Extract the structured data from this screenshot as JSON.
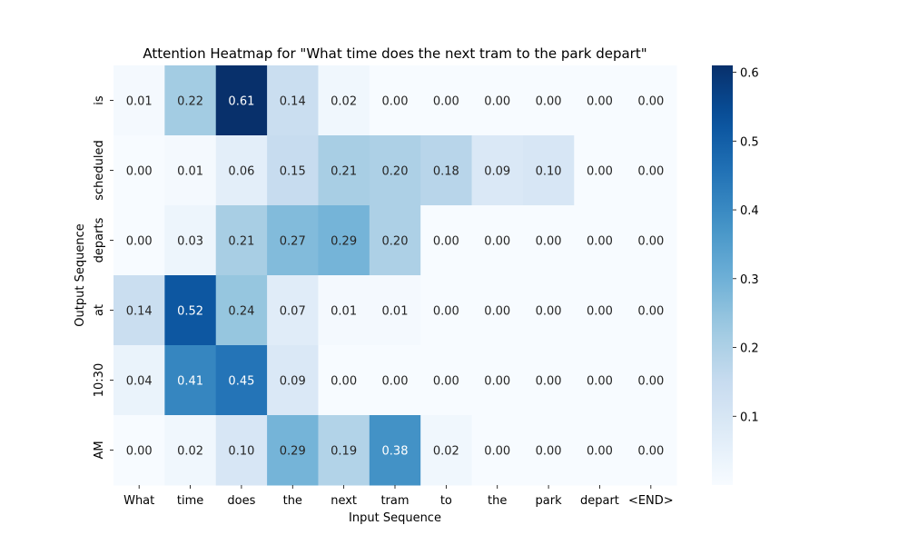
{
  "chart_data": {
    "type": "heatmap",
    "title": "Attention Heatmap for \"What time does the next tram to the park depart\"",
    "xlabel": "Input Sequence",
    "ylabel": "Output Sequence",
    "x_categories": [
      "What",
      "time",
      "does",
      "the",
      "next",
      "tram",
      "to",
      "the",
      "park",
      "depart",
      "<END>"
    ],
    "y_categories": [
      "is",
      "scheduled",
      "departs",
      "at",
      "10:30",
      "AM"
    ],
    "values": [
      [
        0.01,
        0.22,
        0.61,
        0.14,
        0.02,
        0.0,
        0.0,
        0.0,
        0.0,
        0.0,
        0.0
      ],
      [
        0.0,
        0.01,
        0.06,
        0.15,
        0.21,
        0.2,
        0.18,
        0.09,
        0.1,
        0.0,
        0.0
      ],
      [
        0.0,
        0.03,
        0.21,
        0.27,
        0.29,
        0.2,
        0.0,
        0.0,
        0.0,
        0.0,
        0.0
      ],
      [
        0.14,
        0.52,
        0.24,
        0.07,
        0.01,
        0.01,
        0.0,
        0.0,
        0.0,
        0.0,
        0.0
      ],
      [
        0.04,
        0.41,
        0.45,
        0.09,
        0.0,
        0.0,
        0.0,
        0.0,
        0.0,
        0.0,
        0.0
      ],
      [
        0.0,
        0.02,
        0.1,
        0.29,
        0.19,
        0.38,
        0.02,
        0.0,
        0.0,
        0.0,
        0.0
      ]
    ],
    "value_format": "0.00",
    "colormap": "Blues",
    "colorbar": {
      "range": [
        0.0,
        0.61
      ],
      "ticks": [
        0.1,
        0.2,
        0.3,
        0.4,
        0.5,
        0.6
      ],
      "tick_labels": [
        "0.1",
        "0.2",
        "0.3",
        "0.4",
        "0.5",
        "0.6"
      ]
    }
  }
}
